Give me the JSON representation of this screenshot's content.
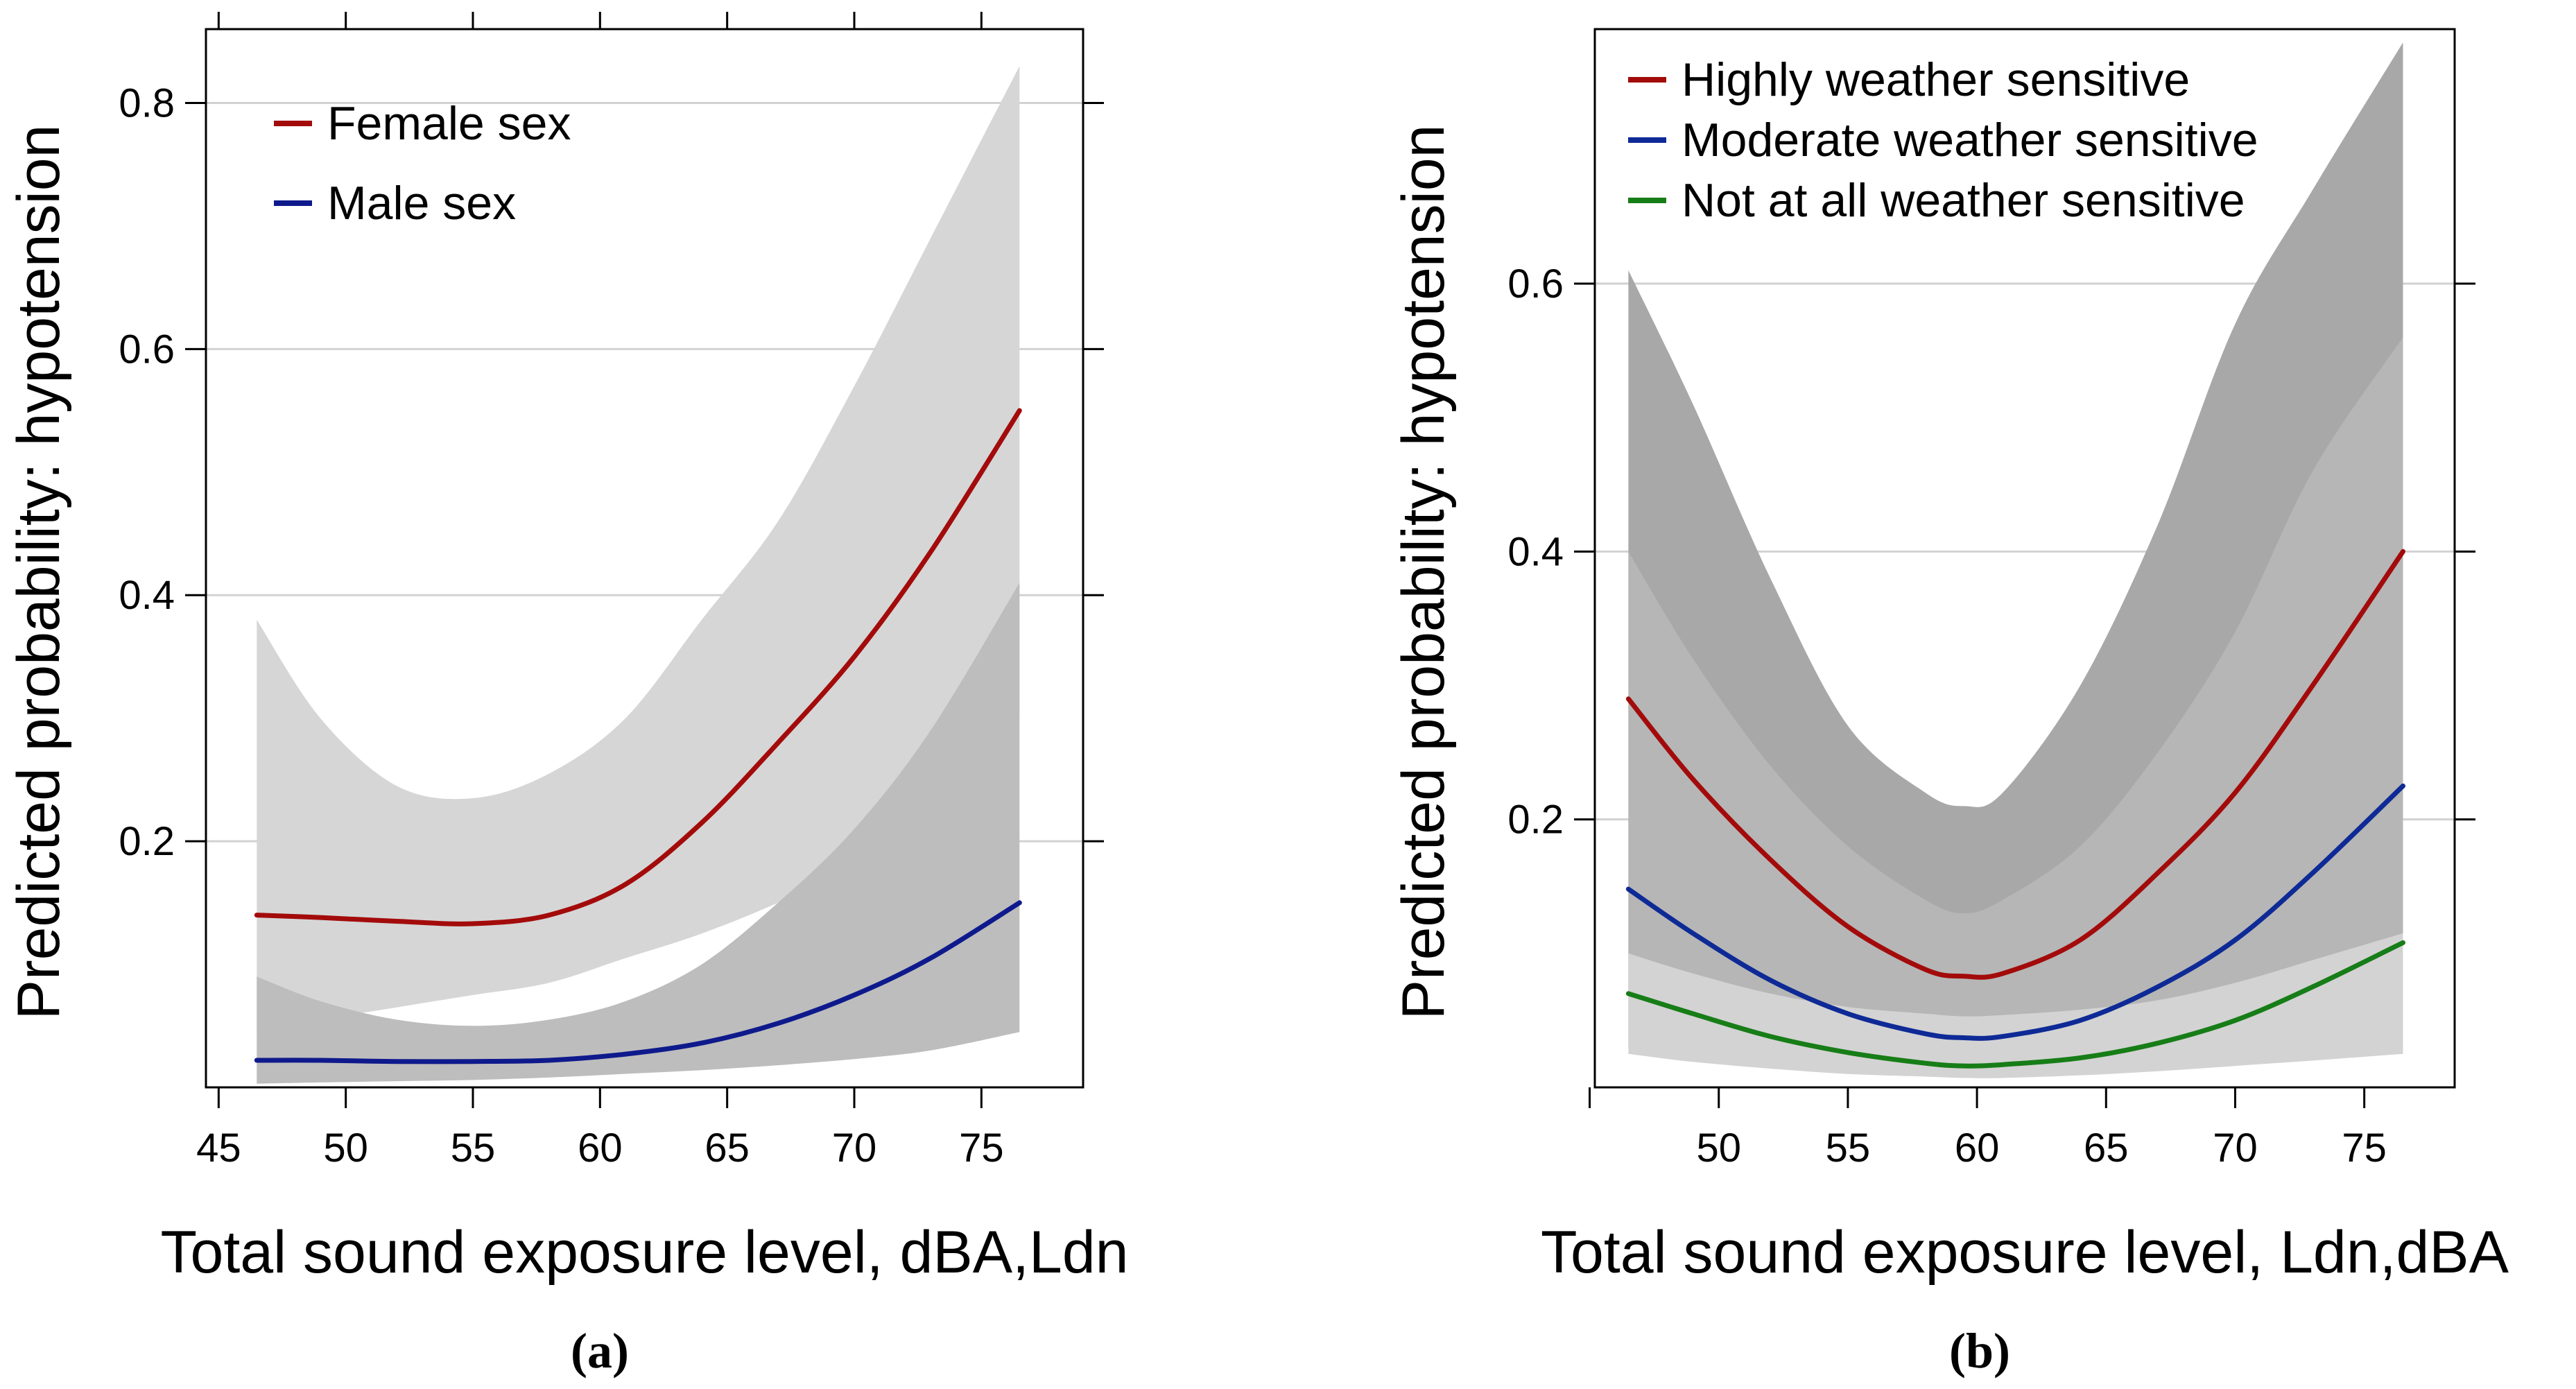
{
  "figure": {
    "captions": [
      "(a)",
      "(b)"
    ]
  },
  "chart_data": [
    {
      "type": "line",
      "panel": "(a)",
      "title": "",
      "xlabel": "Total sound exposure level, dBA,Ldn",
      "ylabel": "Predicted probability:  hypotension",
      "xlim": [
        44.5,
        79
      ],
      "ylim": [
        0,
        0.86
      ],
      "xticks": [
        45,
        50,
        55,
        60,
        65,
        70,
        75
      ],
      "yticks": [
        0.2,
        0.4,
        0.6,
        0.8
      ],
      "gridlines": [
        0.2,
        0.4,
        0.6,
        0.8
      ],
      "grid_color": "#d2d2d2",
      "legend_position": "top-left",
      "series": [
        {
          "name": "Female sex",
          "color": "#a30b0b",
          "band_color": "#d6d6d6",
          "x": [
            46.5,
            49,
            52,
            55,
            58,
            61,
            64,
            67,
            70,
            73,
            76.5
          ],
          "y": [
            0.14,
            0.138,
            0.135,
            0.133,
            0.14,
            0.165,
            0.215,
            0.28,
            0.35,
            0.435,
            0.55
          ],
          "lower": [
            0.045,
            0.055,
            0.065,
            0.075,
            0.085,
            0.105,
            0.125,
            0.15,
            0.18,
            0.225,
            0.3
          ],
          "upper": [
            0.38,
            0.3,
            0.245,
            0.235,
            0.255,
            0.3,
            0.38,
            0.46,
            0.57,
            0.69,
            0.83
          ]
        },
        {
          "name": "Male sex",
          "color": "#0e1a8c",
          "band_color": "#bdbdbd",
          "x": [
            46.5,
            49,
            52,
            55,
            58,
            61,
            64,
            67,
            70,
            73,
            76.5
          ],
          "y": [
            0.022,
            0.022,
            0.021,
            0.021,
            0.022,
            0.027,
            0.036,
            0.052,
            0.075,
            0.105,
            0.15
          ],
          "lower": [
            0.003,
            0.004,
            0.005,
            0.006,
            0.008,
            0.011,
            0.014,
            0.018,
            0.023,
            0.03,
            0.045
          ],
          "upper": [
            0.09,
            0.07,
            0.055,
            0.05,
            0.055,
            0.07,
            0.1,
            0.15,
            0.21,
            0.29,
            0.41
          ]
        }
      ]
    },
    {
      "type": "line",
      "panel": "(b)",
      "title": "",
      "xlabel": "Total sound exposure level, Ldn,dBA",
      "ylabel": "Predicted probability:  hypotension",
      "xlim": [
        45.2,
        78.5
      ],
      "ylim": [
        0,
        0.79
      ],
      "xticks": [
        45,
        50,
        55,
        60,
        65,
        70,
        75
      ],
      "xtick_labels": [
        "",
        "50",
        "55",
        "60",
        "65",
        "70",
        "75"
      ],
      "yticks": [
        0.2,
        0.4,
        0.6
      ],
      "gridlines": [
        0.2,
        0.4,
        0.6
      ],
      "grid_color": "#d2d2d2",
      "legend_position": "top-left",
      "series": [
        {
          "name": "Highly weather sensitive",
          "color": "#a30b0b",
          "band_color": "#a8a8a8",
          "x": [
            46.5,
            49,
            52,
            55,
            58,
            59.5,
            61,
            64,
            67,
            70,
            73,
            76.5
          ],
          "y": [
            0.29,
            0.23,
            0.17,
            0.12,
            0.088,
            0.083,
            0.085,
            0.11,
            0.16,
            0.22,
            0.3,
            0.4
          ],
          "lower": [
            0.075,
            0.066,
            0.055,
            0.045,
            0.038,
            0.036,
            0.037,
            0.043,
            0.052,
            0.062,
            0.075,
            0.09
          ],
          "upper": [
            0.61,
            0.51,
            0.38,
            0.27,
            0.22,
            0.21,
            0.22,
            0.3,
            0.42,
            0.57,
            0.67,
            0.78
          ]
        },
        {
          "name": "Moderate weather sensitive",
          "color": "#0e2a96",
          "band_color": "#b6b6b6",
          "x": [
            46.5,
            49,
            52,
            55,
            58,
            59.5,
            61,
            64,
            67,
            70,
            73,
            76.5
          ],
          "y": [
            0.148,
            0.115,
            0.08,
            0.055,
            0.04,
            0.037,
            0.038,
            0.05,
            0.075,
            0.11,
            0.16,
            0.225
          ],
          "lower": [
            0.03,
            0.027,
            0.022,
            0.018,
            0.015,
            0.014,
            0.015,
            0.017,
            0.02,
            0.025,
            0.03,
            0.038
          ],
          "upper": [
            0.4,
            0.32,
            0.24,
            0.18,
            0.14,
            0.13,
            0.14,
            0.18,
            0.25,
            0.34,
            0.46,
            0.56
          ]
        },
        {
          "name": "Not at all weather sensitive",
          "color": "#177d17",
          "band_color": "#d3d3d3",
          "x": [
            46.5,
            49,
            52,
            55,
            58,
            59.5,
            61,
            64,
            67,
            70,
            73,
            76.5
          ],
          "y": [
            0.07,
            0.055,
            0.038,
            0.026,
            0.018,
            0.016,
            0.017,
            0.022,
            0.033,
            0.05,
            0.075,
            0.108
          ],
          "lower": [
            0.025,
            0.019,
            0.014,
            0.01,
            0.008,
            0.007,
            0.007,
            0.009,
            0.012,
            0.016,
            0.02,
            0.025
          ],
          "upper": [
            0.1,
            0.085,
            0.07,
            0.06,
            0.055,
            0.053,
            0.054,
            0.058,
            0.065,
            0.078,
            0.095,
            0.115
          ]
        }
      ]
    }
  ]
}
